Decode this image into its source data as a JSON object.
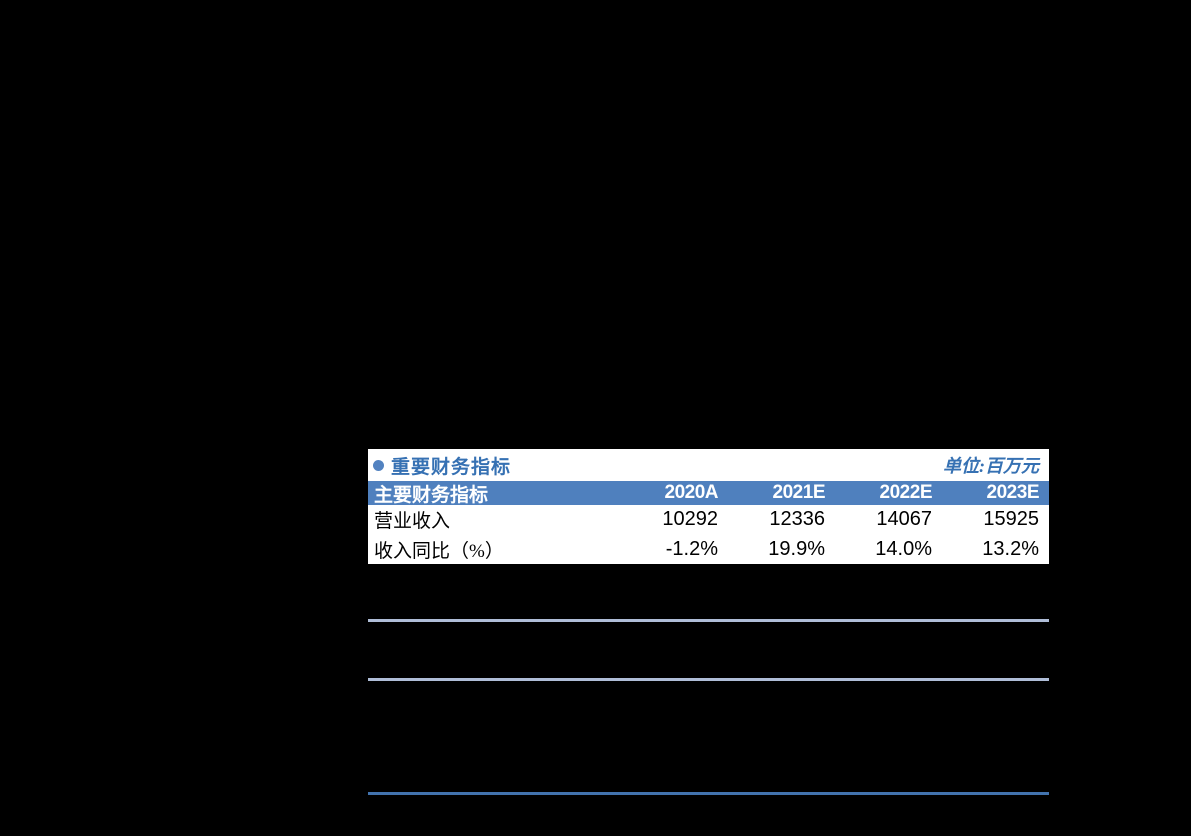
{
  "page": {
    "background_color": "#000000"
  },
  "fin_table": {
    "title": {
      "bullet_icon": "circle-bullet",
      "text": "重要财务指标",
      "unit_label": "单位:百万元"
    },
    "colors": {
      "title_text": "#3671B3",
      "header_background": "#4F80BE",
      "header_text": "#FFFFFF",
      "row_background": "#FFFFFF",
      "body_text": "#000000",
      "divider_light": "#AFBDD7",
      "divider_dark": "#4273AE"
    },
    "header": {
      "label": "主要财务指标",
      "years": [
        "2020A",
        "2021E",
        "2022E",
        "2023E"
      ]
    },
    "rows": [
      {
        "label": "营业收入",
        "values": [
          "10292",
          "12336",
          "14067",
          "15925"
        ]
      },
      {
        "label": "收入同比（%）",
        "values": [
          "-1.2%",
          "19.9%",
          "14.0%",
          "13.2%"
        ]
      }
    ]
  }
}
